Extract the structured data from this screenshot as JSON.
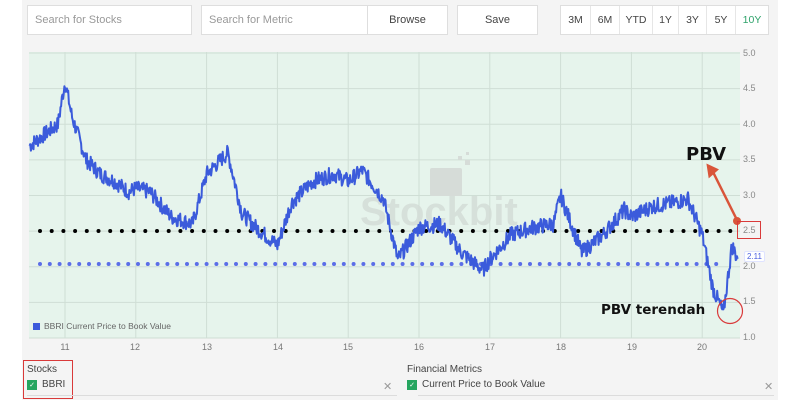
{
  "toolbar": {
    "search_stocks_placeholder": "Search for Stocks",
    "search_metric_placeholder": "Search for Metric",
    "browse_label": "Browse",
    "save_label": "Save",
    "ranges": [
      "3M",
      "6M",
      "YTD",
      "1Y",
      "3Y",
      "5Y",
      "10Y"
    ],
    "active_range": "10Y"
  },
  "chart": {
    "legend_label": "BBRI Current Price to Book Value",
    "watermark": "Stockbit",
    "last_value_tag": "2.11",
    "annotations": {
      "pbv_label": "PBV",
      "pbv_low_label": "PBV terendah"
    },
    "colors": {
      "series": "#3b5bdb",
      "plot_bg": "#e6f4ec",
      "avg_line_black": "#000000",
      "avg_line_blue": "#5b6ee8",
      "annotation_red": "#d93a3a"
    }
  },
  "chart_data": {
    "type": "line",
    "title": "",
    "xlabel": "",
    "ylabel": "",
    "x_tick_labels": [
      "11",
      "12",
      "13",
      "14",
      "15",
      "16",
      "17",
      "18",
      "19",
      "20"
    ],
    "y_tick_labels": [
      "1.0",
      "1.5",
      "2.0",
      "2.5",
      "3.0",
      "3.5",
      "4.0",
      "4.5",
      "5.0"
    ],
    "ylim": [
      1.0,
      5.0
    ],
    "grid": true,
    "legend_position": "bottom-left",
    "series": [
      {
        "name": "BBRI Current Price to Book Value",
        "x": [
          10.5,
          10.7,
          10.9,
          11.0,
          11.1,
          11.3,
          11.5,
          11.7,
          11.9,
          12.0,
          12.2,
          12.5,
          12.8,
          13.0,
          13.3,
          13.5,
          13.7,
          14.0,
          14.2,
          14.5,
          14.8,
          15.0,
          15.2,
          15.5,
          15.7,
          16.0,
          16.3,
          16.6,
          16.9,
          17.0,
          17.3,
          17.6,
          17.9,
          18.0,
          18.3,
          18.6,
          18.9,
          19.0,
          19.3,
          19.6,
          19.8,
          20.0,
          20.15,
          20.3,
          20.42,
          20.5
        ],
        "values": [
          3.7,
          3.85,
          4.0,
          4.6,
          4.1,
          3.5,
          3.3,
          3.2,
          3.05,
          3.1,
          3.05,
          2.7,
          2.6,
          3.3,
          3.6,
          2.75,
          2.55,
          2.3,
          2.9,
          3.2,
          3.3,
          3.2,
          3.35,
          2.95,
          2.1,
          2.55,
          2.6,
          2.2,
          1.95,
          2.1,
          2.45,
          2.55,
          2.6,
          3.0,
          2.2,
          2.45,
          2.8,
          2.7,
          2.85,
          2.9,
          2.95,
          2.45,
          1.7,
          1.35,
          2.3,
          2.11
        ]
      },
      {
        "name": "Upper reference (dotted, black)",
        "values": [
          2.5
        ]
      },
      {
        "name": "Lower reference (dotted, blue)",
        "values": [
          2.03
        ]
      }
    ],
    "annotations": [
      {
        "text": "PBV",
        "points_to": 2.5
      },
      {
        "text": "PBV terendah",
        "value": 1.35
      },
      {
        "text": "2.11",
        "type": "last-value"
      }
    ]
  },
  "footer": {
    "stocks_title": "Stocks",
    "stock_item": "BBRI",
    "metrics_title": "Financial Metrics",
    "metric_item": "Current Price to Book Value",
    "remove_glyph": "✕",
    "check_glyph": "✓"
  }
}
